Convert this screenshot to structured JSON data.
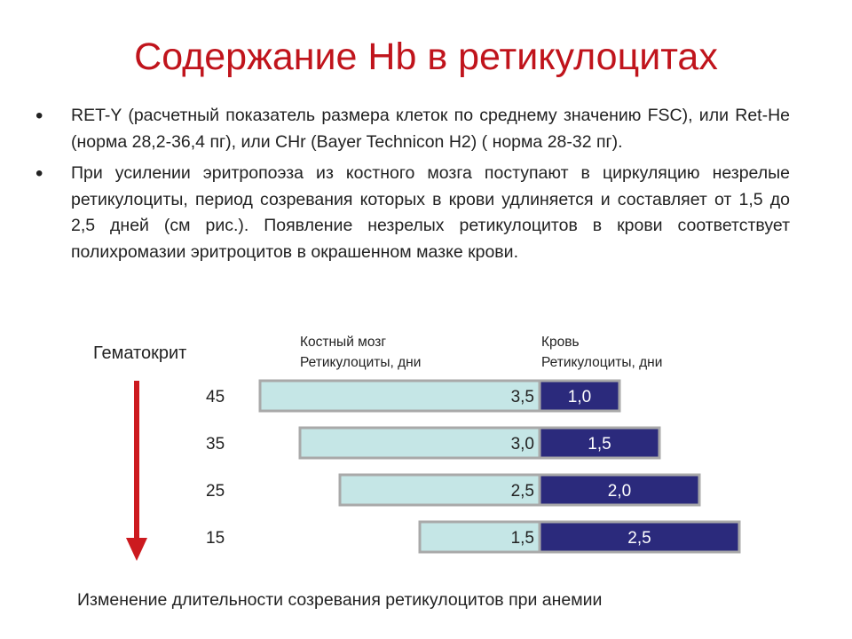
{
  "slide": {
    "title": "Содержание Hb в ретикулоцитах",
    "bullets": [
      "RET-Y (расчетный показатель размера клеток по среднему значению FSC), или Ret-He (норма 28,2-36,4 пг), или CHr (Bayer Technicon H2) ( норма 28-32 пг).",
      "При усилении эритропоэза из костного мозга поступают в циркуляцию незрелые ретикулоциты, период созревания которых в крови удлиняется и составляет от 1,5 до 2,5 дней (см рис.). Появление незрелых ретикулоцитов в крови соответствует полихромазии эритроцитов в окрашенном мазке крови."
    ]
  },
  "chart_data": {
    "type": "bar",
    "stacked": true,
    "orientation": "horizontal",
    "title": "Изменение длительности созревания ретикулоцитов при анемии",
    "y_axis_label": "Гематокрит",
    "categories": [
      "45",
      "35",
      "25",
      "15"
    ],
    "series": [
      {
        "name": "Костный мозг Ретикулоциты, дни",
        "name_lines": [
          "Костный мозг",
          "Ретикулоциты, дни"
        ],
        "values": [
          3.5,
          3.0,
          2.5,
          1.5
        ],
        "labels": [
          "3,5",
          "3,0",
          "2,5",
          "1,5"
        ],
        "color": "#c5e6e6"
      },
      {
        "name": "Кровь Ретикулоциты, дни",
        "name_lines": [
          "Кровь",
          "Ретикулоциты, дни"
        ],
        "values": [
          1.0,
          1.5,
          2.0,
          2.5
        ],
        "labels": [
          "1,0",
          "1,5",
          "2,0",
          "2,5"
        ],
        "color": "#2b2a7c"
      }
    ],
    "arrow_color": "#cc1a1f"
  }
}
